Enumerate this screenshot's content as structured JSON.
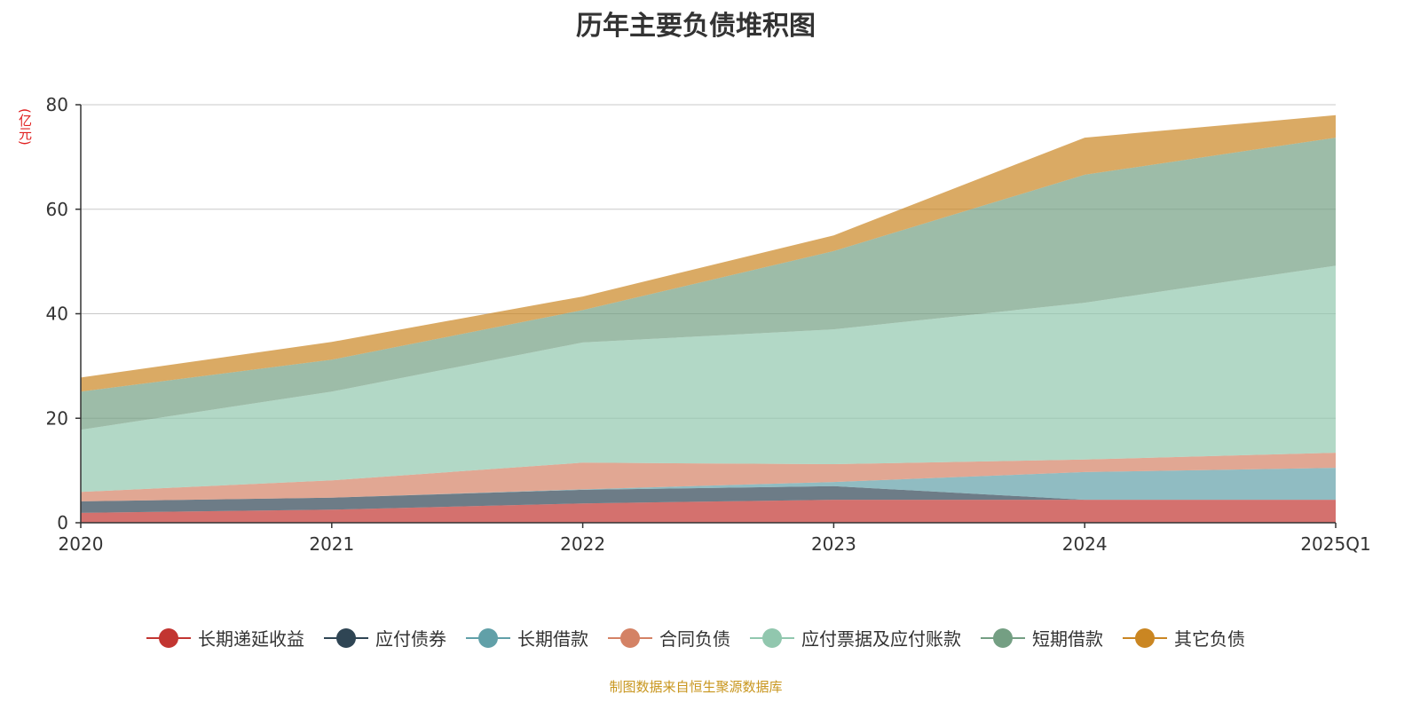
{
  "chart_data": {
    "type": "area",
    "stacked": true,
    "title": "历年主要负债堆积图",
    "ylabel": "(亿元)",
    "xlabel": "",
    "categories": [
      "2020",
      "2021",
      "2022",
      "2023",
      "2024",
      "2025Q1"
    ],
    "ylim": [
      0,
      80
    ],
    "yticks": [
      0,
      20,
      40,
      60,
      80
    ],
    "grid": true,
    "legend_position": "bottom",
    "series": [
      {
        "name": "长期递延收益",
        "color": "#c23531",
        "values": [
          1.9,
          2.5,
          3.7,
          4.4,
          4.4,
          4.4
        ]
      },
      {
        "name": "应付债券",
        "color": "#2f4554",
        "values": [
          2.2,
          2.3,
          2.6,
          2.6,
          0,
          0
        ]
      },
      {
        "name": "长期借款",
        "color": "#61a0a8",
        "values": [
          0,
          0,
          0.1,
          0.8,
          5.3,
          6.1
        ]
      },
      {
        "name": "合同负债",
        "color": "#d48265",
        "values": [
          1.8,
          3.3,
          5.1,
          3.4,
          2.4,
          2.9
        ]
      },
      {
        "name": "应付票据及应付账款",
        "color": "#91c7ae",
        "values": [
          11.9,
          17.0,
          23.0,
          25.8,
          30.0,
          35.8
        ]
      },
      {
        "name": "短期借款",
        "color": "#749f83",
        "values": [
          7.3,
          6.1,
          6.2,
          15.0,
          24.5,
          24.5
        ]
      },
      {
        "name": "其它负债",
        "color": "#ca8622",
        "values": [
          2.7,
          3.4,
          2.6,
          3.0,
          7.1,
          4.3
        ]
      }
    ]
  },
  "footer": "制图数据来自恒生聚源数据库"
}
